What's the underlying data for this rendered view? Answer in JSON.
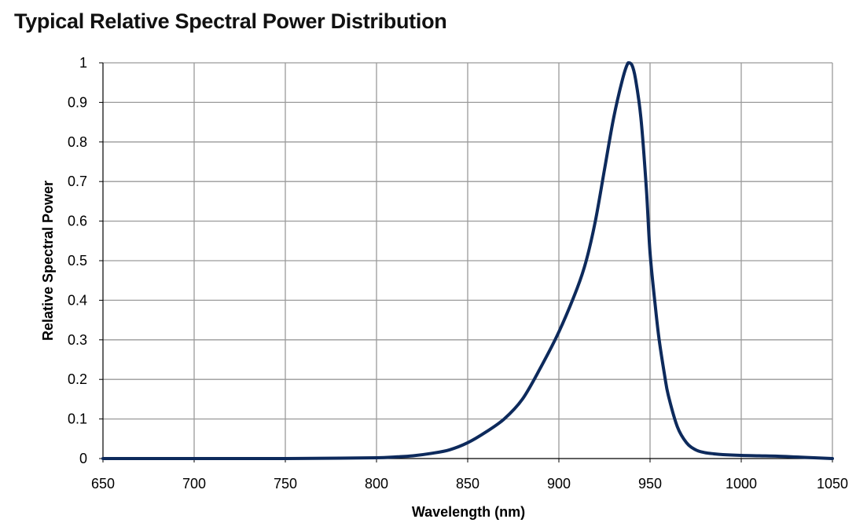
{
  "chart_data": {
    "type": "line",
    "title": "Typical Relative Spectral Power Distribution",
    "xlabel": "Wavelength (nm)",
    "ylabel": "Relative Spectral Power",
    "xlim": [
      650,
      1050
    ],
    "ylim": [
      0,
      1
    ],
    "x_ticks": [
      "650",
      "700",
      "750",
      "800",
      "850",
      "900",
      "950",
      "1000",
      "1050"
    ],
    "y_ticks": [
      "0",
      "0.1",
      "0.2",
      "0.3",
      "0.4",
      "0.5",
      "0.6",
      "0.7",
      "0.8",
      "0.9",
      "1"
    ],
    "grid": true,
    "legend": "none",
    "colors": {
      "line": "#0d2a5c",
      "grid": "#9a9a9a",
      "frame": "#000000"
    },
    "series": [
      {
        "x": [
          650,
          700,
          750,
          780,
          800,
          810,
          820,
          830,
          840,
          850,
          860,
          870,
          880,
          890,
          900,
          910,
          915,
          920,
          925,
          930,
          935,
          938,
          940,
          942,
          945,
          948,
          950,
          953,
          955,
          958,
          960,
          965,
          970,
          975,
          980,
          985,
          990,
          1000,
          1010,
          1020,
          1030,
          1040,
          1050
        ],
        "y": [
          0,
          0,
          0,
          0.001,
          0.002,
          0.004,
          0.007,
          0.013,
          0.022,
          0.04,
          0.067,
          0.1,
          0.15,
          0.23,
          0.32,
          0.43,
          0.5,
          0.6,
          0.73,
          0.86,
          0.96,
          1.0,
          0.995,
          0.96,
          0.86,
          0.68,
          0.52,
          0.38,
          0.3,
          0.21,
          0.16,
          0.08,
          0.04,
          0.022,
          0.015,
          0.012,
          0.01,
          0.008,
          0.007,
          0.006,
          0.004,
          0.002,
          0
        ]
      }
    ]
  }
}
